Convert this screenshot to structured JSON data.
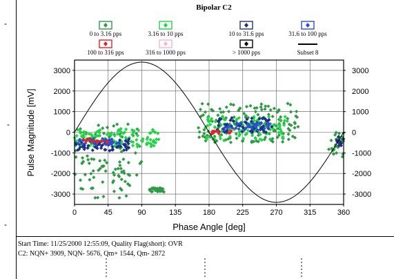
{
  "chart_data": {
    "type": "scatter",
    "title": "Bipolar C2",
    "xlabel": "Phase Angle [deg]",
    "ylabel": "Pulse Magnitude [mV]",
    "xlim": [
      0,
      360
    ],
    "ylim": [
      -3500,
      3500
    ],
    "x_ticks": [
      0,
      45,
      90,
      135,
      180,
      225,
      270,
      315,
      360
    ],
    "y_ticks": [
      -3000,
      -2000,
      -1000,
      0,
      1000,
      2000,
      3000
    ],
    "grid": true,
    "legend": [
      {
        "label": "0 to 3.16 pps",
        "color": "#2f9a45",
        "marker": "diamond"
      },
      {
        "label": "3.16 to 10 pps",
        "color": "#22d345",
        "marker": "diamond"
      },
      {
        "label": "10 to 31.6 pps",
        "color": "#1f2f86",
        "marker": "diamond"
      },
      {
        "label": "31.6 to 100 pps",
        "color": "#2a4fd0",
        "marker": "diamond"
      },
      {
        "label": "100 to 316 pps",
        "color": "#e0242a",
        "marker": "diamond"
      },
      {
        "label": "316 to 1000 pps",
        "color": "#f4b6c8",
        "marker": "diamond"
      },
      {
        "label": "> 1000 pps",
        "color": "#000000",
        "marker": "diamond"
      },
      {
        "label": "Subset 8",
        "color": "#000000",
        "marker": "line"
      }
    ],
    "series": [
      {
        "name": "Subset 8",
        "type": "sine",
        "amplitude": 3400,
        "period_deg": 360
      },
      {
        "name": "0 to 3.16 pps",
        "cluster_regions": [
          {
            "x": [
              0,
              90
            ],
            "y": [
              -3200,
              400
            ]
          },
          {
            "x": [
              100,
              120
            ],
            "y": [
              -2900,
              -2700
            ]
          },
          {
            "x": [
              165,
              300
            ],
            "y": [
              -500,
              1400
            ]
          },
          {
            "x": [
              340,
              360
            ],
            "y": [
              -1200,
              0
            ]
          }
        ]
      },
      {
        "name": "3.16 to 10 pps",
        "cluster_regions": [
          {
            "x": [
              0,
              115
            ],
            "y": [
              -700,
              200
            ]
          },
          {
            "x": [
              175,
              285
            ],
            "y": [
              -400,
              800
            ]
          }
        ]
      },
      {
        "name": "10 to 31.6 pps",
        "cluster_regions": [
          {
            "x": [
              0,
              75
            ],
            "y": [
              -900,
              -300
            ]
          },
          {
            "x": [
              190,
              265
            ],
            "y": [
              0,
              700
            ]
          },
          {
            "x": [
              350,
              360
            ],
            "y": [
              -700,
              -200
            ]
          }
        ]
      },
      {
        "name": "31.6 to 100 pps",
        "cluster_regions": [
          {
            "x": [
              0,
              60
            ],
            "y": [
              -600,
              -300
            ]
          },
          {
            "x": [
              200,
              260
            ],
            "y": [
              100,
              500
            ]
          }
        ]
      },
      {
        "name": "100 to 316 pps",
        "cluster_regions": [
          {
            "x": [
              5,
              45
            ],
            "y": [
              -500,
              -300
            ]
          },
          {
            "x": [
              180,
              210
            ],
            "y": [
              -80,
              80
            ]
          }
        ]
      }
    ]
  },
  "info": {
    "line1": "Start Time: 11/25/2000 12:55:09,  Quality Flag(short): OVR",
    "line2": "C2:  NQN+ 3909, NQN- 5676, Qm+ 1544, Qm- 2872"
  }
}
